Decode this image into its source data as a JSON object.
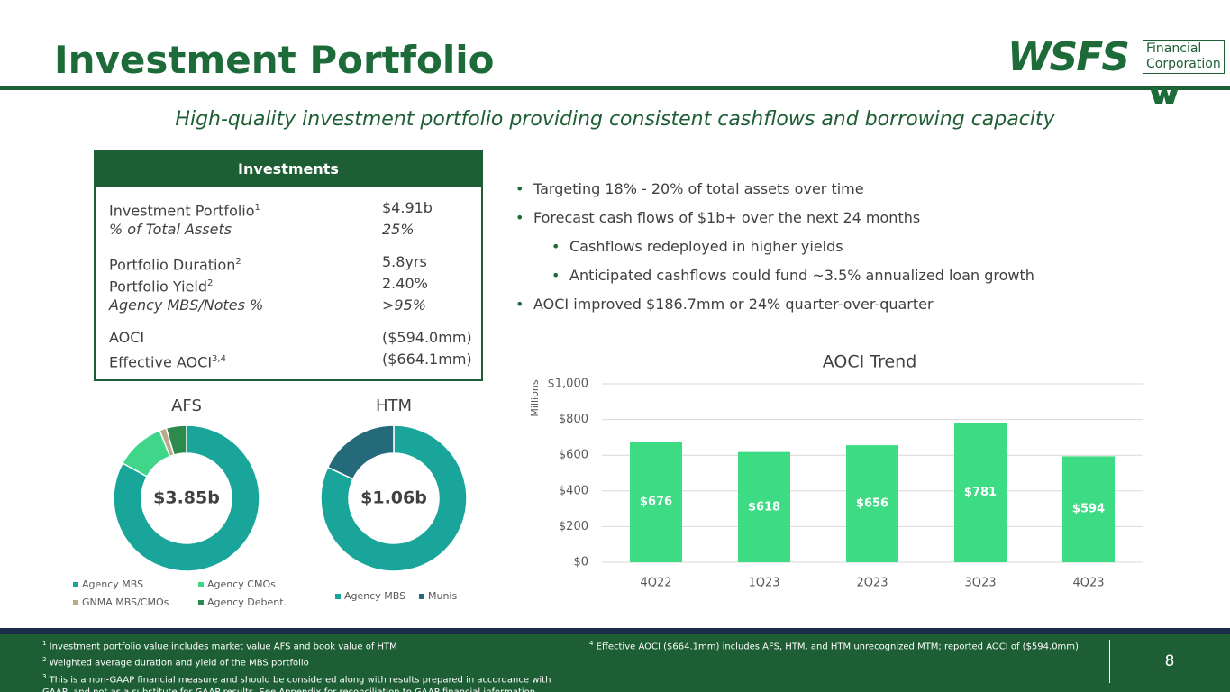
{
  "header": {
    "title": "Investment Portfolio",
    "logo": "WSFS",
    "logo_sub": [
      "Financial",
      "Corporation"
    ],
    "subtitle": "High-quality investment portfolio providing consistent cashflows and borrowing capacity"
  },
  "table": {
    "title": "Investments",
    "groups": [
      [
        {
          "label": "Investment Portfolio",
          "sup": "1",
          "value": "$4.91b"
        },
        {
          "label": "% of Total Assets",
          "value": "25%",
          "italic": true
        }
      ],
      [
        {
          "label": "Portfolio Duration",
          "sup": "2",
          "value": "5.8yrs"
        },
        {
          "label": "Portfolio Yield",
          "sup": "2",
          "value": "2.40%"
        },
        {
          "label": "Agency MBS/Notes %",
          "value": ">95%",
          "italic": true
        }
      ],
      [
        {
          "label": "AOCI",
          "value": "($594.0mm)"
        },
        {
          "label": "Effective AOCI",
          "sup": "3,4",
          "value": "($664.1mm)"
        }
      ]
    ]
  },
  "bullets": [
    {
      "text": "Targeting 18% - 20% of total assets over time",
      "level": 0
    },
    {
      "text": "Forecast cash flows of $1b+ over the next 24 months",
      "level": 0
    },
    {
      "text": "Cashflows redeployed in higher yields",
      "level": 1
    },
    {
      "text": "Anticipated cashflows could fund  ~3.5% annualized loan growth",
      "level": 1
    },
    {
      "text": "AOCI improved $186.7mm or 24% quarter-over-quarter",
      "level": 0
    }
  ],
  "chart_data": [
    {
      "type": "donut",
      "title": "AFS",
      "center_label": "$3.85b",
      "categories": [
        "Agency MBS",
        "Agency CMOs",
        "GNMA MBS/CMOs",
        "Agency Debent."
      ],
      "values": [
        83,
        11,
        1.5,
        4.5
      ],
      "colors": [
        "#1aa59a",
        "#3fd68a",
        "#b8ab8a",
        "#2b8a4c"
      ]
    },
    {
      "type": "donut",
      "title": "HTM",
      "center_label": "$1.06b",
      "categories": [
        "Agency MBS",
        "Munis"
      ],
      "values": [
        82,
        18
      ],
      "colors": [
        "#1aa59a",
        "#256a7a"
      ]
    },
    {
      "type": "bar",
      "title": "AOCI Trend",
      "y_label": "Millions",
      "categories": [
        "4Q22",
        "1Q23",
        "2Q23",
        "3Q23",
        "4Q23"
      ],
      "values": [
        676,
        618,
        656,
        781,
        594
      ],
      "value_labels": [
        "$676",
        "$618",
        "$656",
        "$781",
        "$594"
      ],
      "color": "#3ddc84",
      "ylim": [
        0,
        1000
      ],
      "yticks": [
        {
          "value": 0,
          "label": "$0"
        },
        {
          "value": 200,
          "label": "$200"
        },
        {
          "value": 400,
          "label": "$400"
        },
        {
          "value": 600,
          "label": "$600"
        },
        {
          "value": 800,
          "label": "$800"
        },
        {
          "value": 1000,
          "label": "$1,000"
        }
      ],
      "grid": true
    }
  ],
  "footnotes_left": [
    {
      "mark": "1",
      "text": "Investment portfolio value includes market value AFS and book value of HTM"
    },
    {
      "mark": "2",
      "text": "Weighted average duration and yield of the MBS portfolio"
    },
    {
      "mark": "3",
      "text": "This is a non-GAAP financial measure and should be considered along with results prepared in accordance with GAAP, and not as a substitute for GAAP results.  See Appendix for reconciliation to GAAP financial information"
    }
  ],
  "footnotes_right": [
    {
      "mark": "4",
      "text": "Effective AOCI ($664.1mm) includes AFS, HTM, and HTM unrecognized MTM; reported AOCI of ($594.0mm)"
    }
  ],
  "page_number": "8"
}
